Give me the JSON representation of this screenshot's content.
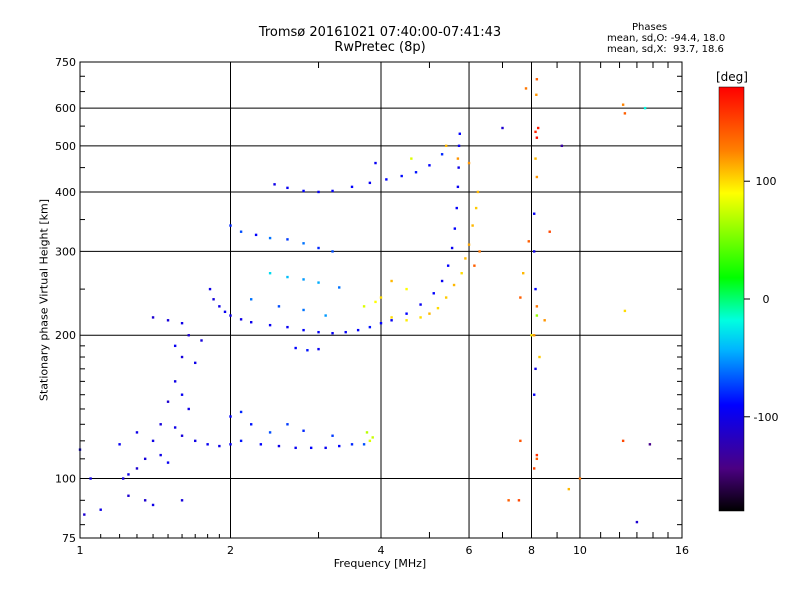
{
  "header": {
    "title_line1": "Tromsø 20161021 07:40:00-07:41:43",
    "title_line2": "RwPretec (8p)"
  },
  "phases_box": {
    "label": "Phases",
    "line_o": "mean, sd,O: -94.4, 18.0",
    "line_x": "mean, sd,X:  93.7, 18.6"
  },
  "chart_data": {
    "type": "scatter",
    "xlabel": "Frequency [MHz]",
    "ylabel": "Stationary phase Virtual Height [km]",
    "x_scale": "log",
    "y_scale": "log",
    "xlim": [
      1,
      16
    ],
    "ylim": [
      75,
      750
    ],
    "x_ticks": [
      1,
      2,
      4,
      6,
      8,
      10,
      16
    ],
    "y_ticks": [
      75,
      100,
      200,
      300,
      400,
      500,
      600,
      750
    ],
    "grid": true,
    "colorbar": {
      "label": "[deg]",
      "range": [
        -180,
        180
      ],
      "ticks": [
        100,
        0,
        -100
      ],
      "colormap": "rainbow (black-violet-blue-cyan-green-yellow-red)"
    },
    "series": [
      {
        "name": "",
        "points": [
          [
            2.45,
            415,
            -100
          ],
          [
            2.6,
            408,
            -95
          ],
          [
            2.8,
            402,
            -90
          ],
          [
            3.0,
            400,
            -95
          ],
          [
            3.2,
            402,
            -92
          ],
          [
            3.5,
            410,
            -90
          ],
          [
            3.8,
            418,
            -95
          ],
          [
            4.1,
            425,
            -90
          ],
          [
            4.4,
            432,
            -88
          ],
          [
            4.7,
            440,
            -85
          ],
          [
            5.0,
            455,
            -90
          ],
          [
            5.3,
            480,
            -80
          ],
          [
            3.9,
            460,
            -95
          ],
          [
            4.6,
            470,
            80
          ],
          [
            5.4,
            500,
            110
          ],
          [
            5.7,
            470,
            120
          ],
          [
            6.0,
            460,
            120
          ],
          [
            2.0,
            340,
            -80
          ],
          [
            2.1,
            330,
            -70
          ],
          [
            2.25,
            325,
            -90
          ],
          [
            2.4,
            320,
            -60
          ],
          [
            2.6,
            318,
            -75
          ],
          [
            2.8,
            312,
            -60
          ],
          [
            3.0,
            305,
            -80
          ],
          [
            3.2,
            300,
            -70
          ],
          [
            2.4,
            270,
            -30
          ],
          [
            2.6,
            265,
            -40
          ],
          [
            2.8,
            262,
            -50
          ],
          [
            3.0,
            258,
            -45
          ],
          [
            3.3,
            252,
            -60
          ],
          [
            1.82,
            250,
            -100
          ],
          [
            1.85,
            238,
            -105
          ],
          [
            1.9,
            230,
            -100
          ],
          [
            1.95,
            224,
            -95
          ],
          [
            2.0,
            220,
            -100
          ],
          [
            2.1,
            216,
            -100
          ],
          [
            2.2,
            213,
            -98
          ],
          [
            2.4,
            210,
            -95
          ],
          [
            2.6,
            208,
            -95
          ],
          [
            2.8,
            205,
            -90
          ],
          [
            3.0,
            203,
            -92
          ],
          [
            3.2,
            202,
            -95
          ],
          [
            3.4,
            203,
            -93
          ],
          [
            3.6,
            205,
            -90
          ],
          [
            3.8,
            208,
            -85
          ],
          [
            4.0,
            212,
            -90
          ],
          [
            4.2,
            215,
            -95
          ],
          [
            4.5,
            222,
            -90
          ],
          [
            4.8,
            232,
            -95
          ],
          [
            5.1,
            245,
            -90
          ],
          [
            5.3,
            260,
            -95
          ],
          [
            5.45,
            280,
            -90
          ],
          [
            5.55,
            305,
            -95
          ],
          [
            5.62,
            335,
            -90
          ],
          [
            5.67,
            370,
            -92
          ],
          [
            5.7,
            410,
            -95
          ],
          [
            5.72,
            450,
            -100
          ],
          [
            5.73,
            500,
            -95
          ],
          [
            5.75,
            530,
            -90
          ],
          [
            2.2,
            238,
            -60
          ],
          [
            2.5,
            230,
            -70
          ],
          [
            2.8,
            226,
            -60
          ],
          [
            3.1,
            220,
            -50
          ],
          [
            3.7,
            230,
            80
          ],
          [
            3.9,
            235,
            90
          ],
          [
            4.2,
            218,
            100
          ],
          [
            4.5,
            215,
            95
          ],
          [
            4.8,
            218,
            100
          ],
          [
            5.0,
            222,
            110
          ],
          [
            5.2,
            228,
            100
          ],
          [
            5.4,
            240,
            105
          ],
          [
            5.6,
            255,
            110
          ],
          [
            5.8,
            270,
            100
          ],
          [
            5.9,
            290,
            110
          ],
          [
            6.0,
            310,
            115
          ],
          [
            6.1,
            340,
            110
          ],
          [
            6.2,
            370,
            105
          ],
          [
            6.25,
            400,
            110
          ],
          [
            6.3,
            300,
            130
          ],
          [
            6.15,
            280,
            140
          ],
          [
            4.0,
            240,
            100
          ],
          [
            4.2,
            260,
            110
          ],
          [
            4.5,
            250,
            90
          ],
          [
            2.7,
            188,
            -90
          ],
          [
            2.85,
            186,
            -85
          ],
          [
            3.0,
            187,
            -95
          ],
          [
            1.4,
            218,
            -110
          ],
          [
            1.5,
            215,
            -105
          ],
          [
            1.6,
            212,
            -100
          ],
          [
            1.65,
            200,
            -110
          ],
          [
            1.6,
            180,
            -105
          ],
          [
            1.55,
            160,
            -100
          ],
          [
            1.5,
            145,
            -110
          ],
          [
            1.45,
            130,
            -105
          ],
          [
            1.4,
            120,
            -100
          ],
          [
            1.35,
            110,
            -105
          ],
          [
            1.3,
            105,
            -110
          ],
          [
            1.25,
            102,
            -100
          ],
          [
            1.22,
            100,
            -105
          ],
          [
            1.5,
            108,
            -95
          ],
          [
            1.45,
            112,
            -100
          ],
          [
            1.55,
            190,
            -95
          ],
          [
            1.7,
            175,
            -100
          ],
          [
            1.75,
            195,
            -105
          ],
          [
            1.6,
            150,
            -95
          ],
          [
            1.65,
            140,
            -100
          ],
          [
            1.55,
            128,
            -100
          ],
          [
            1.6,
            123,
            -105
          ],
          [
            1.7,
            120,
            -100
          ],
          [
            1.8,
            118,
            -95
          ],
          [
            1.9,
            117,
            -100
          ],
          [
            2.0,
            118,
            -95
          ],
          [
            2.1,
            120,
            -85
          ],
          [
            2.3,
            118,
            -90
          ],
          [
            2.5,
            117,
            -100
          ],
          [
            2.7,
            116,
            -95
          ],
          [
            2.9,
            116,
            -90
          ],
          [
            3.1,
            116,
            -95
          ],
          [
            3.3,
            117,
            -90
          ],
          [
            3.5,
            118,
            -80
          ],
          [
            3.7,
            118,
            -70
          ],
          [
            2.0,
            135,
            -90
          ],
          [
            2.1,
            138,
            -80
          ],
          [
            2.2,
            130,
            -85
          ],
          [
            2.4,
            125,
            -70
          ],
          [
            2.6,
            130,
            -75
          ],
          [
            2.8,
            126,
            -80
          ],
          [
            3.2,
            123,
            -75
          ],
          [
            1.3,
            125,
            -100
          ],
          [
            1.2,
            118,
            -95
          ],
          [
            1.35,
            90,
            -110
          ],
          [
            1.4,
            88,
            -100
          ],
          [
            1.6,
            90,
            -105
          ],
          [
            1.25,
            92,
            -110
          ],
          [
            1.0,
            115,
            -100
          ],
          [
            1.05,
            100,
            -100
          ],
          [
            1.1,
            86,
            -100
          ],
          [
            1.02,
            84,
            -110
          ],
          [
            3.75,
            125,
            70
          ],
          [
            3.8,
            120,
            80
          ],
          [
            3.85,
            122,
            75
          ],
          [
            8.1,
            300,
            -100
          ],
          [
            8.1,
            360,
            -95
          ],
          [
            8.15,
            250,
            -90
          ],
          [
            8.2,
            220,
            60
          ],
          [
            8.1,
            200,
            120
          ],
          [
            8.2,
            230,
            130
          ],
          [
            8.1,
            150,
            -95
          ],
          [
            8.15,
            170,
            -100
          ],
          [
            8.2,
            110,
            140
          ],
          [
            8.2,
            112,
            160
          ],
          [
            8.1,
            105,
            150
          ],
          [
            8.2,
            520,
            175
          ],
          [
            8.25,
            545,
            170
          ],
          [
            8.15,
            535,
            165
          ],
          [
            8.2,
            430,
            120
          ],
          [
            8.15,
            470,
            110
          ],
          [
            8.2,
            690,
            140
          ],
          [
            8.18,
            640,
            120
          ],
          [
            7.8,
            660,
            130
          ],
          [
            7.9,
            315,
            140
          ],
          [
            7.7,
            270,
            110
          ],
          [
            7.6,
            240,
            140
          ],
          [
            8.7,
            330,
            150
          ],
          [
            8.5,
            215,
            120
          ],
          [
            7.0,
            545,
            -110
          ],
          [
            7.2,
            90,
            140
          ],
          [
            9.2,
            500,
            -130
          ],
          [
            9.5,
            95,
            110
          ],
          [
            10.0,
            100,
            130
          ],
          [
            12.2,
            610,
            125
          ],
          [
            12.3,
            585,
            140
          ],
          [
            12.3,
            225,
            100
          ],
          [
            12.2,
            120,
            150
          ],
          [
            13.0,
            81,
            -110
          ],
          [
            13.5,
            600,
            -20
          ],
          [
            13.8,
            118,
            -140
          ],
          [
            7.6,
            120,
            145
          ],
          [
            7.55,
            90,
            150
          ],
          [
            8.0,
            200,
            95
          ],
          [
            8.3,
            180,
            105
          ]
        ]
      }
    ]
  }
}
